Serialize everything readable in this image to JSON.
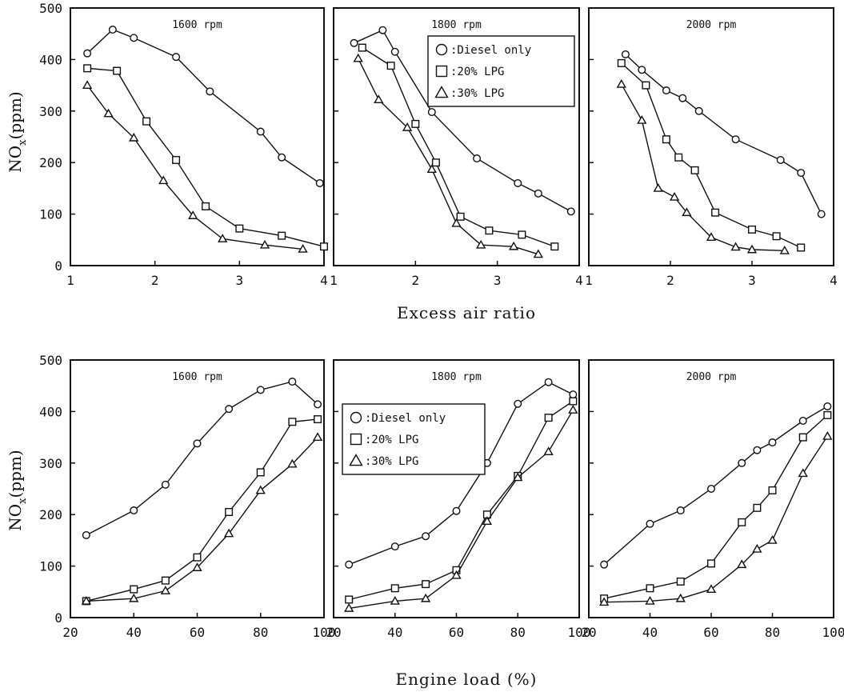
{
  "figure": {
    "top_xlabel": "Excess air ratio",
    "bottom_xlabel": "Engine load (%)",
    "ylabel_main": "NO",
    "ylabel_sub": "x",
    "ylabel_unit": "(ppm)"
  },
  "legend": {
    "entries": [
      {
        "marker": "circle",
        "label": "Diesel only"
      },
      {
        "marker": "square",
        "label": "20% LPG"
      },
      {
        "marker": "triangle",
        "label": "30% LPG"
      }
    ],
    "separator": ":",
    "shown_in_panels": [
      1,
      4
    ]
  },
  "chart_data": [
    {
      "type": "line",
      "panel": "top-1",
      "title": "1600 rpm",
      "xlim": [
        1,
        4
      ],
      "ylim": [
        0,
        500
      ],
      "xticks": [
        1,
        2,
        3,
        4
      ],
      "yticks": [
        0,
        100,
        200,
        300,
        400,
        500
      ],
      "xtick_labels": [
        "1",
        "2",
        "3",
        "4"
      ],
      "ytick_labels": [
        "0",
        "100",
        "200",
        "300",
        "400",
        "500"
      ],
      "series": [
        {
          "name": "Diesel only",
          "marker": "circle",
          "x": [
            1.2,
            1.5,
            1.75,
            2.25,
            2.65,
            3.25,
            3.5,
            3.95
          ],
          "y": [
            412,
            458,
            442,
            405,
            338,
            260,
            210,
            160
          ]
        },
        {
          "name": "20% LPG",
          "marker": "square",
          "x": [
            1.2,
            1.55,
            1.9,
            2.25,
            2.6,
            3.0,
            3.5,
            4.0
          ],
          "y": [
            383,
            378,
            280,
            205,
            115,
            72,
            58,
            37
          ]
        },
        {
          "name": "30% LPG",
          "marker": "triangle",
          "x": [
            1.2,
            1.45,
            1.75,
            2.1,
            2.45,
            2.8,
            3.3,
            3.75
          ],
          "y": [
            350,
            295,
            248,
            165,
            97,
            52,
            40,
            32
          ]
        }
      ]
    },
    {
      "type": "line",
      "panel": "top-2",
      "title": "1800 rpm",
      "xlim": [
        1,
        4
      ],
      "ylim": [
        0,
        500
      ],
      "xticks": [
        1,
        2,
        3,
        4
      ],
      "yticks": [
        0,
        100,
        200,
        300,
        400,
        500
      ],
      "xtick_labels": [
        "1",
        "2",
        "3",
        "4"
      ],
      "ytick_labels": [
        "0",
        "100",
        "200",
        "300",
        "400",
        "500"
      ],
      "series": [
        {
          "name": "Diesel only",
          "marker": "circle",
          "x": [
            1.25,
            1.6,
            1.75,
            2.2,
            2.75,
            3.25,
            3.5,
            3.9
          ],
          "y": [
            432,
            457,
            415,
            298,
            208,
            160,
            140,
            105
          ]
        },
        {
          "name": "20% LPG",
          "marker": "square",
          "x": [
            1.35,
            1.7,
            2.0,
            2.25,
            2.55,
            2.9,
            3.3,
            3.7
          ],
          "y": [
            423,
            388,
            275,
            200,
            95,
            68,
            60,
            37
          ]
        },
        {
          "name": "30% LPG",
          "marker": "triangle",
          "x": [
            1.3,
            1.55,
            1.9,
            2.2,
            2.5,
            2.8,
            3.2,
            3.5
          ],
          "y": [
            402,
            322,
            268,
            187,
            82,
            40,
            37,
            22
          ]
        }
      ]
    },
    {
      "type": "line",
      "panel": "top-3",
      "title": "2000 rpm",
      "xlim": [
        1,
        4
      ],
      "ylim": [
        0,
        500
      ],
      "xticks": [
        1,
        2,
        3,
        4
      ],
      "yticks": [
        0,
        100,
        200,
        300,
        400,
        500
      ],
      "xtick_labels": [
        "1",
        "2",
        "3",
        "4"
      ],
      "ytick_labels": [
        "0",
        "100",
        "200",
        "300",
        "400",
        "500"
      ],
      "series": [
        {
          "name": "Diesel only",
          "marker": "circle",
          "x": [
            1.45,
            1.65,
            1.95,
            2.15,
            2.35,
            2.8,
            3.35,
            3.6,
            3.85
          ],
          "y": [
            410,
            380,
            340,
            325,
            300,
            245,
            205,
            180,
            100
          ]
        },
        {
          "name": "20% LPG",
          "marker": "square",
          "x": [
            1.4,
            1.7,
            1.95,
            2.1,
            2.3,
            2.55,
            3.0,
            3.3,
            3.6
          ],
          "y": [
            393,
            350,
            245,
            210,
            185,
            103,
            70,
            57,
            35
          ]
        },
        {
          "name": "30% LPG",
          "marker": "triangle",
          "x": [
            1.4,
            1.65,
            1.85,
            2.05,
            2.2,
            2.5,
            2.8,
            3.0,
            3.4
          ],
          "y": [
            352,
            282,
            150,
            133,
            103,
            55,
            36,
            31,
            29
          ]
        }
      ]
    },
    {
      "type": "line",
      "panel": "bottom-1",
      "title": "1600 rpm",
      "xlim": [
        20,
        100
      ],
      "ylim": [
        0,
        500
      ],
      "xticks": [
        20,
        40,
        60,
        80,
        100
      ],
      "yticks": [
        0,
        100,
        200,
        300,
        400,
        500
      ],
      "xtick_labels": [
        "20",
        "40",
        "60",
        "80",
        "100"
      ],
      "ytick_labels": [
        "0",
        "100",
        "200",
        "300",
        "400",
        "500"
      ],
      "series": [
        {
          "name": "Diesel only",
          "marker": "circle",
          "x": [
            25,
            40,
            50,
            60,
            70,
            80,
            90,
            98
          ],
          "y": [
            160,
            208,
            258,
            338,
            405,
            442,
            458,
            414
          ]
        },
        {
          "name": "20% LPG",
          "marker": "square",
          "x": [
            25,
            40,
            50,
            60,
            70,
            80,
            90,
            98
          ],
          "y": [
            32,
            55,
            72,
            117,
            205,
            282,
            380,
            385
          ]
        },
        {
          "name": "30% LPG",
          "marker": "triangle",
          "x": [
            25,
            40,
            50,
            60,
            70,
            80,
            90,
            98
          ],
          "y": [
            32,
            37,
            52,
            97,
            163,
            247,
            298,
            350
          ]
        }
      ]
    },
    {
      "type": "line",
      "panel": "bottom-2",
      "title": "1800 rpm",
      "xlim": [
        20,
        100
      ],
      "ylim": [
        0,
        500
      ],
      "xticks": [
        20,
        40,
        60,
        80,
        100
      ],
      "yticks": [
        0,
        100,
        200,
        300,
        400,
        500
      ],
      "xtick_labels": [
        "20",
        "40",
        "60",
        "80",
        "100"
      ],
      "ytick_labels": [
        "0",
        "100",
        "200",
        "300",
        "400",
        "500"
      ],
      "series": [
        {
          "name": "Diesel only",
          "marker": "circle",
          "x": [
            25,
            40,
            50,
            60,
            70,
            80,
            90,
            98
          ],
          "y": [
            103,
            138,
            158,
            207,
            300,
            415,
            457,
            433
          ]
        },
        {
          "name": "20% LPG",
          "marker": "square",
          "x": [
            25,
            40,
            50,
            60,
            70,
            80,
            90,
            98
          ],
          "y": [
            35,
            57,
            65,
            92,
            200,
            275,
            388,
            420
          ]
        },
        {
          "name": "30% LPG",
          "marker": "triangle",
          "x": [
            25,
            40,
            50,
            60,
            70,
            80,
            90,
            98
          ],
          "y": [
            18,
            32,
            37,
            82,
            187,
            272,
            322,
            403
          ]
        }
      ]
    },
    {
      "type": "line",
      "panel": "bottom-3",
      "title": "2000 rpm",
      "xlim": [
        20,
        100
      ],
      "ylim": [
        0,
        500
      ],
      "xticks": [
        20,
        40,
        60,
        80,
        100
      ],
      "yticks": [
        0,
        100,
        200,
        300,
        400,
        500
      ],
      "xtick_labels": [
        "20",
        "40",
        "60",
        "80",
        "100"
      ],
      "ytick_labels": [
        "0",
        "100",
        "200",
        "300",
        "400",
        "500"
      ],
      "series": [
        {
          "name": "Diesel only",
          "marker": "circle",
          "x": [
            25,
            40,
            50,
            60,
            70,
            75,
            80,
            90,
            98
          ],
          "y": [
            103,
            182,
            208,
            250,
            300,
            325,
            340,
            382,
            410
          ]
        },
        {
          "name": "20% LPG",
          "marker": "square",
          "x": [
            25,
            40,
            50,
            60,
            70,
            75,
            80,
            90,
            98
          ],
          "y": [
            37,
            57,
            70,
            105,
            185,
            213,
            247,
            350,
            393
          ]
        },
        {
          "name": "30% LPG",
          "marker": "triangle",
          "x": [
            25,
            40,
            50,
            60,
            70,
            75,
            80,
            90,
            98
          ],
          "y": [
            30,
            32,
            37,
            55,
            103,
            133,
            150,
            280,
            352
          ]
        }
      ]
    }
  ]
}
